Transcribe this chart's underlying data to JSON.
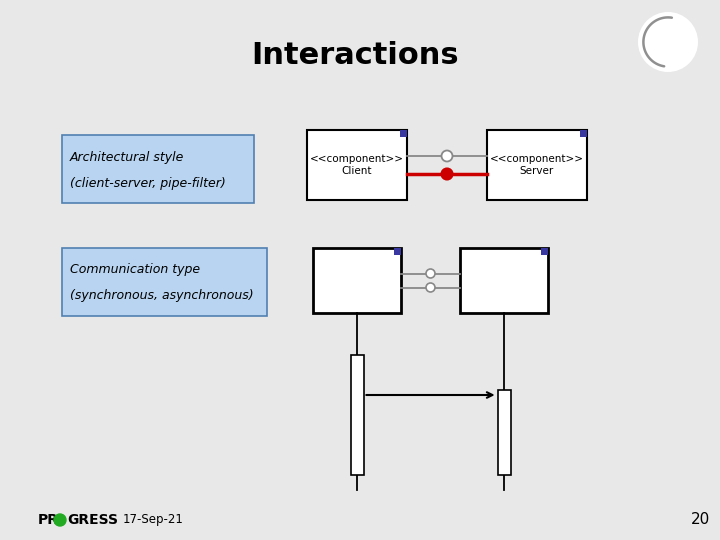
{
  "title": "Interactions",
  "bg_color": "#e8e8e8",
  "title_fontsize": 22,
  "title_fontweight": "bold",
  "label1_line1": "Architectural style",
  "label1_line2": "(client-server, pipe-filter)",
  "label2_line1": "Communication type",
  "label2_line2": "(synchronous, asynchronous)",
  "label_bg": "#b8d4f0",
  "label_border": "#5080b0",
  "client_text": "<<component>>\nClient",
  "server_text": "<<component>>\nServer",
  "date_text": "17-Sep-21",
  "page_num": "20",
  "corner_color": "#3838a0",
  "progress_green": "#22aa22"
}
